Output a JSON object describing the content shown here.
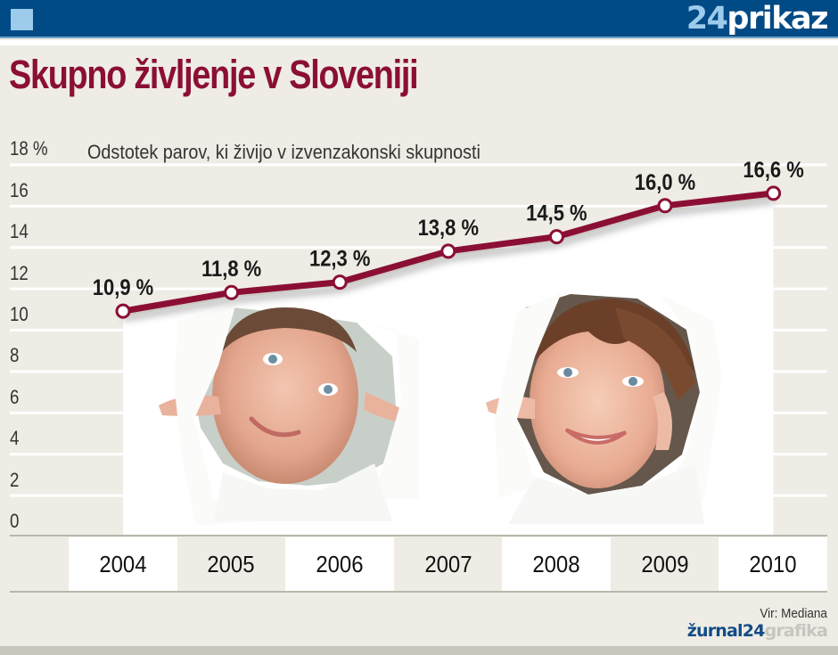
{
  "header": {
    "brand_number": "24",
    "brand_text": "prikaz",
    "colors": {
      "bar": "#004a86",
      "accent": "#9dcbec"
    }
  },
  "title": "Skupno življenje v Sloveniji",
  "subtitle": "Odstotek parov, ki živijo v izvenzakonski skupnosti",
  "y_axis": {
    "ticks": [
      {
        "value": 18,
        "label": "18 %"
      },
      {
        "value": 16,
        "label": "16"
      },
      {
        "value": 14,
        "label": "14"
      },
      {
        "value": 12,
        "label": "12"
      },
      {
        "value": 10,
        "label": "10"
      },
      {
        "value": 8,
        "label": "8"
      },
      {
        "value": 6,
        "label": "6"
      },
      {
        "value": 4,
        "label": "4"
      },
      {
        "value": 2,
        "label": "2"
      },
      {
        "value": 0,
        "label": "0"
      }
    ]
  },
  "years": [
    "2004",
    "2005",
    "2006",
    "2007",
    "2008",
    "2009",
    "2010"
  ],
  "value_labels": [
    "10,9 %",
    "11,8 %",
    "12,3 %",
    "13,8 %",
    "14,5 %",
    "16,0 %",
    "16,6 %"
  ],
  "illustrations": {
    "left": "man-peeking-through-torn-paper",
    "right": "woman-peeking-through-torn-paper"
  },
  "footer": {
    "source": "Vir: Mediana",
    "logo_primary": "žurnal24",
    "logo_secondary": "grafika"
  },
  "chart_data": {
    "type": "line",
    "title": "Skupno življenje v Sloveniji",
    "subtitle": "Odstotek parov, ki živijo v izvenzakonski skupnosti",
    "categories": [
      "2004",
      "2005",
      "2006",
      "2007",
      "2008",
      "2009",
      "2010"
    ],
    "series": [
      {
        "name": "Odstotek parov v izvenzakonski skupnosti",
        "values": [
          10.9,
          11.8,
          12.3,
          13.8,
          14.5,
          16.0,
          16.6
        ],
        "color": "#8b0f35"
      }
    ],
    "xlabel": "",
    "ylabel": "%",
    "ylim": [
      0,
      18
    ],
    "yticks": [
      0,
      2,
      4,
      6,
      8,
      10,
      12,
      14,
      16,
      18
    ],
    "grid": true,
    "legend": null,
    "source": "Vir: Mediana"
  }
}
